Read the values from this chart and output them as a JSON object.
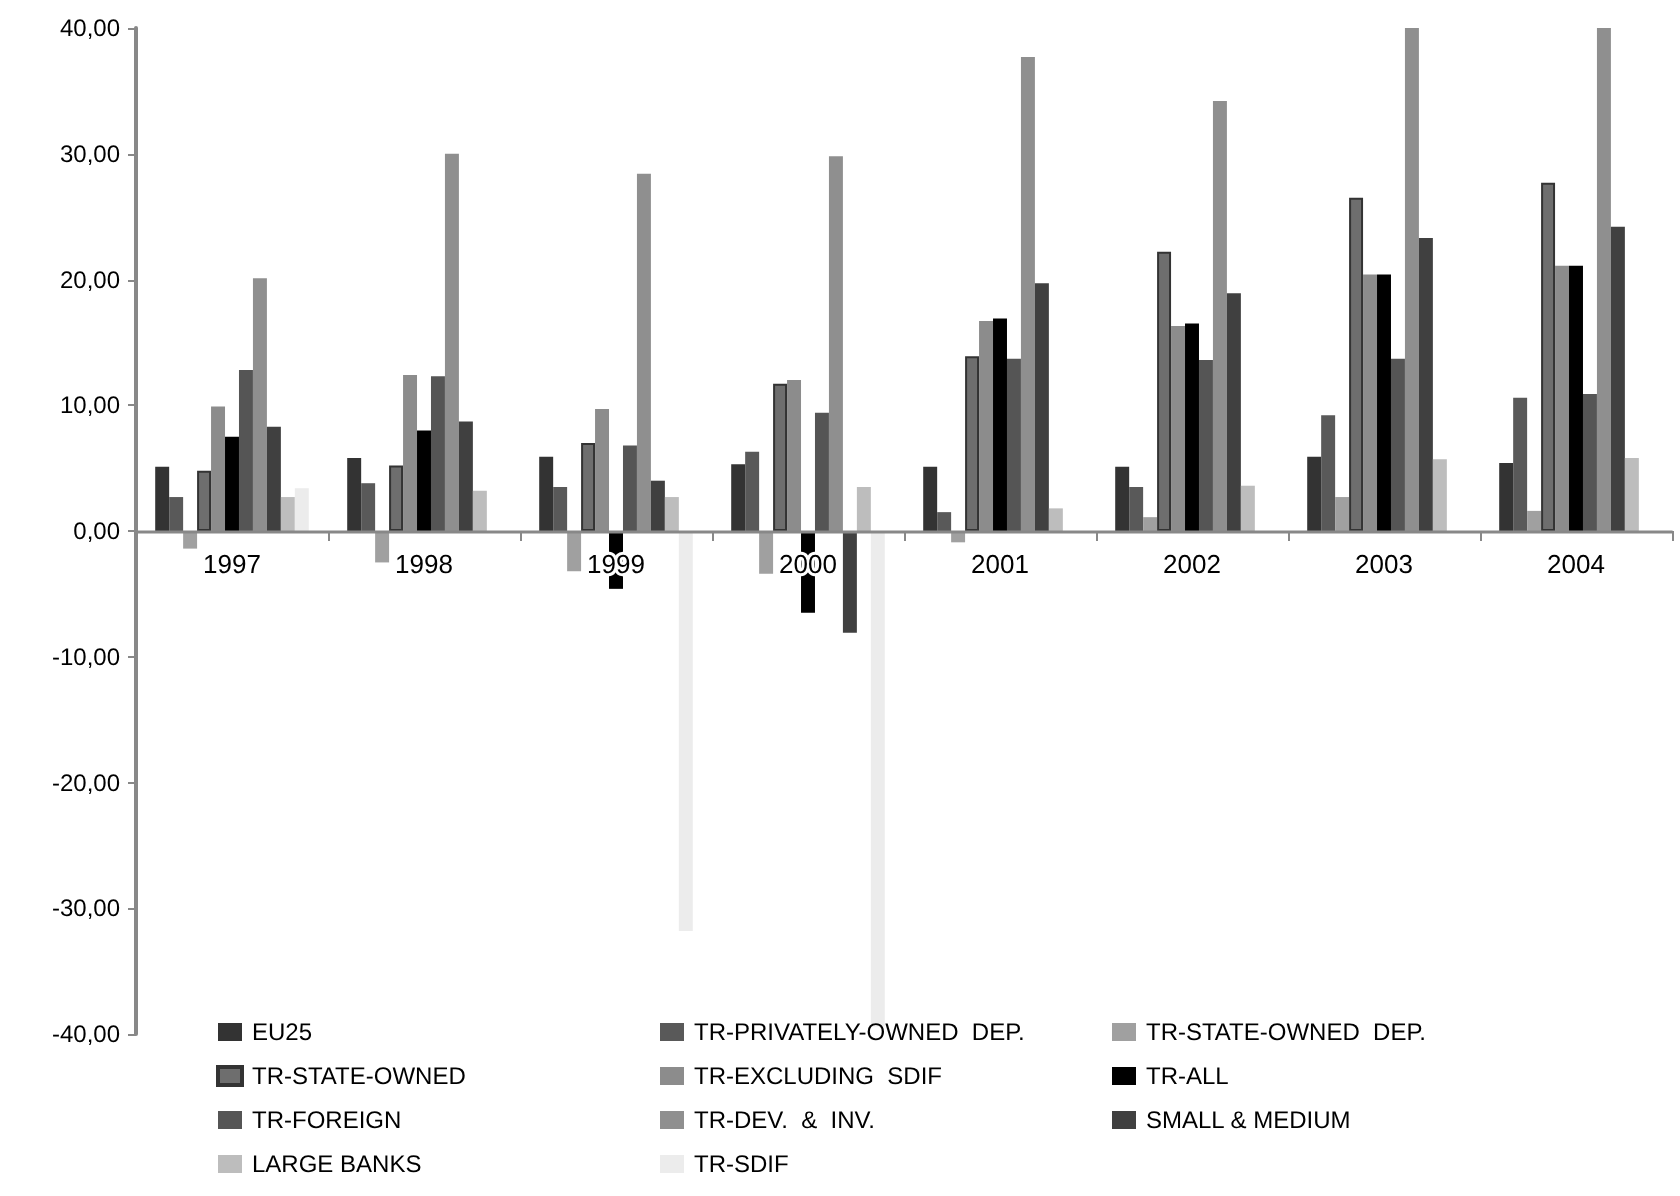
{
  "chart_data": {
    "type": "bar",
    "categories": [
      "1997",
      "1998",
      "1999",
      "2000",
      "2001",
      "2002",
      "2003",
      "2004"
    ],
    "series": [
      {
        "name": "EU25",
        "color": "#333333",
        "values": [
          5.1,
          5.8,
          5.9,
          5.3,
          5.1,
          5.1,
          5.9,
          5.4
        ]
      },
      {
        "name": "TR-PRIVATELY-OWNED  DEP.",
        "color": "#595959",
        "values": [
          2.7,
          3.8,
          3.5,
          6.3,
          1.5,
          3.5,
          9.2,
          10.6
        ]
      },
      {
        "name": "TR-STATE-OWNED  DEP.",
        "color": "#a0a0a0",
        "values": [
          -1.4,
          -2.5,
          -3.2,
          -3.4,
          -0.9,
          1.1,
          2.7,
          1.6
        ]
      },
      {
        "name": "TR-STATE-OWNED",
        "color": "#6e6e6e",
        "values": [
          4.8,
          5.2,
          7.0,
          11.7,
          13.9,
          22.2,
          26.5,
          27.7
        ]
      },
      {
        "name": "TR-EXCLUDING  SDIF",
        "color": "#8c8c8c",
        "values": [
          9.9,
          12.4,
          9.7,
          12.0,
          16.7,
          16.3,
          20.4,
          21.1
        ]
      },
      {
        "name": "TR-ALL",
        "color": "#000000",
        "values": [
          7.5,
          8.0,
          -4.6,
          -6.5,
          16.9,
          16.5,
          20.4,
          21.1
        ]
      },
      {
        "name": "TR-FOREIGN",
        "color": "#555555",
        "values": [
          12.8,
          12.3,
          6.8,
          9.4,
          13.7,
          13.6,
          13.7,
          10.9
        ]
      },
      {
        "name": "TR-DEV.  &  INV.",
        "color": "#8f8f8f",
        "values": [
          20.1,
          30.0,
          28.4,
          29.8,
          37.7,
          34.2,
          40,
          40
        ]
      },
      {
        "name": "SMALL & MEDIUM",
        "color": "#404040",
        "values": [
          8.3,
          8.7,
          4.0,
          -8.1,
          19.7,
          18.9,
          23.3,
          24.2
        ]
      },
      {
        "name": "LARGE BANKS",
        "color": "#bdbdbd",
        "values": [
          2.7,
          3.2,
          2.7,
          3.5,
          1.8,
          3.6,
          5.7,
          5.8
        ]
      },
      {
        "name": "TR-SDIF",
        "color": "#ececec",
        "values": [
          3.4,
          null,
          -31.8,
          -39.4,
          null,
          null,
          null,
          null
        ]
      }
    ],
    "ylim": [
      -40,
      40
    ],
    "yticks": [
      {
        "value": -40,
        "label": "-40,00"
      },
      {
        "value": -30,
        "label": "-30,00"
      },
      {
        "value": -20,
        "label": "-20,00"
      },
      {
        "value": -10,
        "label": "-10,00"
      },
      {
        "value": 0,
        "label": "0,00"
      },
      {
        "value": 10,
        "label": "10,00"
      },
      {
        "value": 20,
        "label": "20,00"
      },
      {
        "value": 30,
        "label": "30,00"
      },
      {
        "value": 40,
        "label": "40,00"
      }
    ],
    "grid": false,
    "legend": "bottom"
  }
}
